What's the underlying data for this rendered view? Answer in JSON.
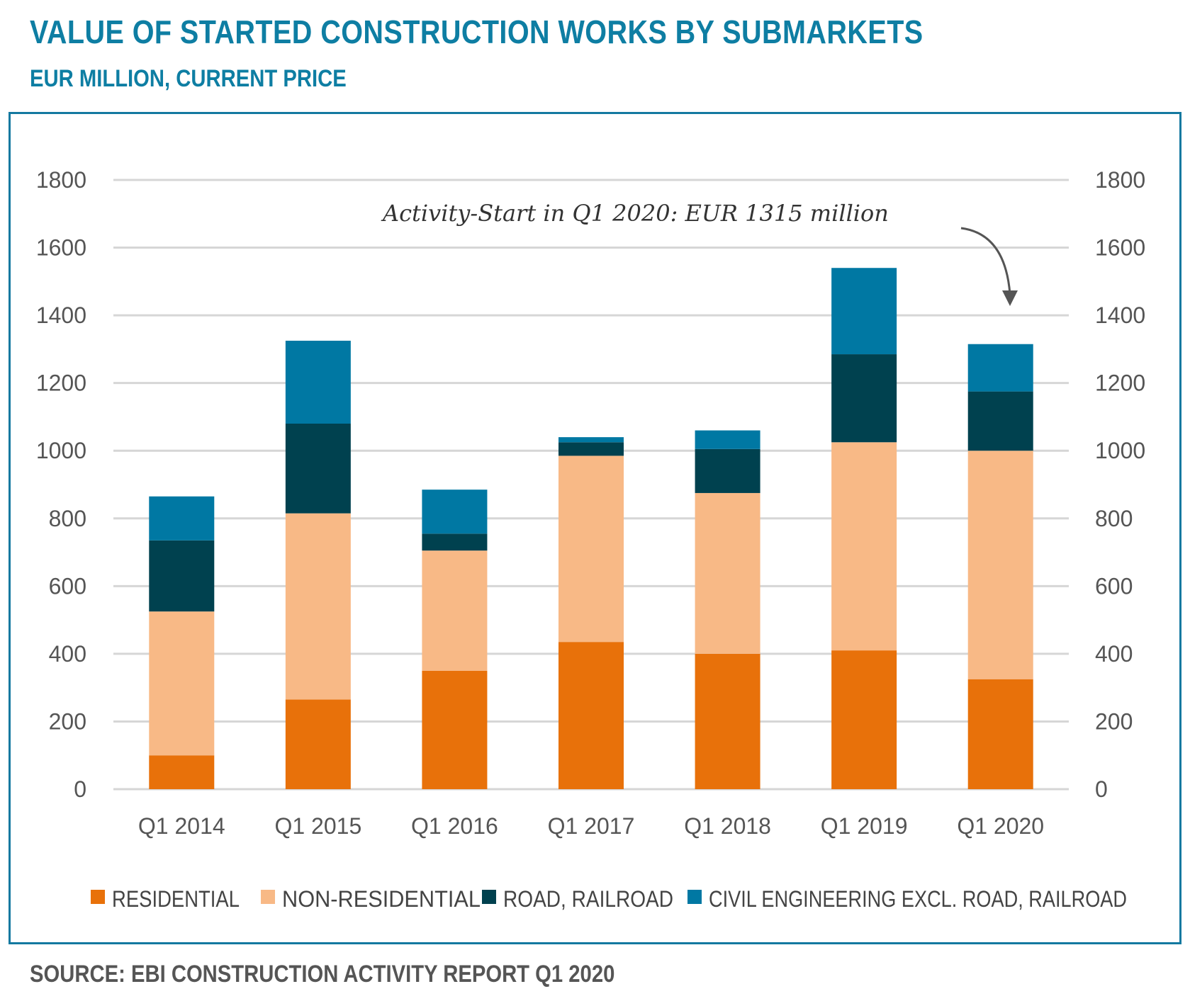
{
  "title": "VALUE OF STARTED CONSTRUCTION WORKS BY SUBMARKETS",
  "subtitle": "EUR MILLION, CURRENT PRICE",
  "source": "SOURCE: EBI CONSTRUCTION ACTIVITY REPORT Q1 2020",
  "annotation": "Activity-Start in Q1 2020: EUR 1315 million",
  "chart_data": {
    "type": "bar",
    "stacked": true,
    "categories": [
      "Q1 2014",
      "Q1 2015",
      "Q1 2016",
      "Q1 2017",
      "Q1 2018",
      "Q1 2019",
      "Q1 2020"
    ],
    "series": [
      {
        "name": "RESIDENTIAL",
        "color": "#e8710a",
        "values": [
          100,
          265,
          350,
          435,
          400,
          410,
          325
        ]
      },
      {
        "name": "NON-RESIDENTIAL",
        "color": "#f8b986",
        "values": [
          425,
          550,
          355,
          550,
          475,
          615,
          675
        ]
      },
      {
        "name": "ROAD, RAILROAD",
        "color": "#00414f",
        "values": [
          210,
          265,
          50,
          40,
          130,
          260,
          175
        ]
      },
      {
        "name": "CIVIL ENGINEERING EXCL. ROAD, RAILROAD",
        "color": "#0078a3",
        "values": [
          130,
          245,
          130,
          15,
          55,
          255,
          140
        ]
      }
    ],
    "yticks": [
      0,
      200,
      400,
      600,
      800,
      1000,
      1200,
      1400,
      1600,
      1800
    ],
    "ylim": [
      0,
      1800
    ],
    "secondary_axis": true,
    "grid": true,
    "legend": "bottom"
  }
}
